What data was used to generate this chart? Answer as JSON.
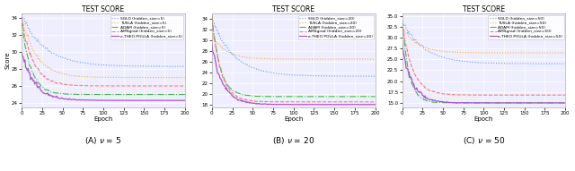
{
  "title": "TEST SCORE",
  "xlabel": "Epoch",
  "ylabel": "Score",
  "bg_color": "#eeeeff",
  "subplots": [
    {
      "label_suffix": "hidden_size=5",
      "caption": "(A) ν = 5",
      "ylim": [
        23.5,
        34.5
      ],
      "yticks": [
        24,
        26,
        28,
        30,
        32,
        34
      ],
      "xlim": [
        0,
        200
      ],
      "xticks": [
        0,
        25,
        50,
        75,
        100,
        125,
        150,
        175,
        200
      ],
      "curves": {
        "SGLD": {
          "start": 34.3,
          "end": 28.3,
          "rate": 0.035,
          "noise": 0.25,
          "color": "#6699ff",
          "ls": "dotted",
          "lw": 0.8
        },
        "TUSLA": {
          "start": 34.0,
          "end": 27.0,
          "rate": 0.055,
          "noise": 0.2,
          "color": "#ffaa33",
          "ls": "dotted",
          "lw": 0.8
        },
        "ADAM": {
          "start": 33.5,
          "end": 25.0,
          "rate": 0.09,
          "noise": 0.15,
          "color": "#44bb44",
          "ls": "dashdot",
          "lw": 0.8
        },
        "AMSgrad": {
          "start": 33.8,
          "end": 26.0,
          "rate": 0.07,
          "noise": 0.18,
          "color": "#ff7777",
          "ls": "dashed",
          "lw": 0.8
        },
        "e-THEO POULA": {
          "start": 30.0,
          "end": 24.3,
          "rate": 0.065,
          "noise": 0.35,
          "color": "#aa55cc",
          "ls": "solid",
          "lw": 0.9
        }
      }
    },
    {
      "label_suffix": "hidden_size=20",
      "caption": "(B) ν = 20",
      "ylim": [
        17.5,
        35.0
      ],
      "yticks": [
        18,
        20,
        22,
        24,
        26,
        28,
        30,
        32,
        34
      ],
      "xlim": [
        0,
        200
      ],
      "xticks": [
        0,
        25,
        50,
        75,
        100,
        125,
        150,
        175,
        200
      ],
      "curves": {
        "SGLD": {
          "start": 34.0,
          "end": 23.3,
          "rate": 0.038,
          "noise": 0.3,
          "color": "#6699ff",
          "ls": "dotted",
          "lw": 0.8
        },
        "TUSLA": {
          "start": 31.0,
          "end": 26.5,
          "rate": 0.06,
          "noise": 0.2,
          "color": "#ffaa33",
          "ls": "dotted",
          "lw": 0.8
        },
        "ADAM": {
          "start": 34.5,
          "end": 19.5,
          "rate": 0.1,
          "noise": 0.2,
          "color": "#44bb44",
          "ls": "dashdot",
          "lw": 0.8
        },
        "AMSgrad": {
          "start": 34.2,
          "end": 18.5,
          "rate": 0.09,
          "noise": 0.22,
          "color": "#ff7777",
          "ls": "dashed",
          "lw": 0.8
        },
        "e-THEO POULA": {
          "start": 29.0,
          "end": 18.0,
          "rate": 0.075,
          "noise": 0.4,
          "color": "#aa55cc",
          "ls": "solid",
          "lw": 0.9
        }
      }
    },
    {
      "label_suffix": "hidden_size=50",
      "caption": "(C) ν = 50",
      "ylim": [
        14.0,
        35.5
      ],
      "yticks": [
        15.0,
        17.5,
        20.0,
        22.5,
        25.0,
        27.5,
        30.0,
        32.5,
        35.0
      ],
      "xlim": [
        0,
        200
      ],
      "xticks": [
        0,
        25,
        50,
        75,
        100,
        125,
        150,
        175,
        200
      ],
      "curves": {
        "SGLD": {
          "start": 34.0,
          "end": 24.0,
          "rate": 0.038,
          "noise": 0.35,
          "color": "#6699ff",
          "ls": "dotted",
          "lw": 0.8
        },
        "TUSLA": {
          "start": 32.5,
          "end": 26.5,
          "rate": 0.055,
          "noise": 0.25,
          "color": "#ffaa33",
          "ls": "dotted",
          "lw": 0.8
        },
        "ADAM": {
          "start": 34.5,
          "end": 15.0,
          "rate": 0.12,
          "noise": 0.2,
          "color": "#44bb44",
          "ls": "dashdot",
          "lw": 0.8
        },
        "AMSgrad": {
          "start": 33.5,
          "end": 16.8,
          "rate": 0.08,
          "noise": 0.25,
          "color": "#ff7777",
          "ls": "dashed",
          "lw": 0.8
        },
        "e-THEO POULA": {
          "start": 28.0,
          "end": 15.0,
          "rate": 0.08,
          "noise": 0.5,
          "color": "#aa55cc",
          "ls": "solid",
          "lw": 0.9
        }
      }
    }
  ]
}
